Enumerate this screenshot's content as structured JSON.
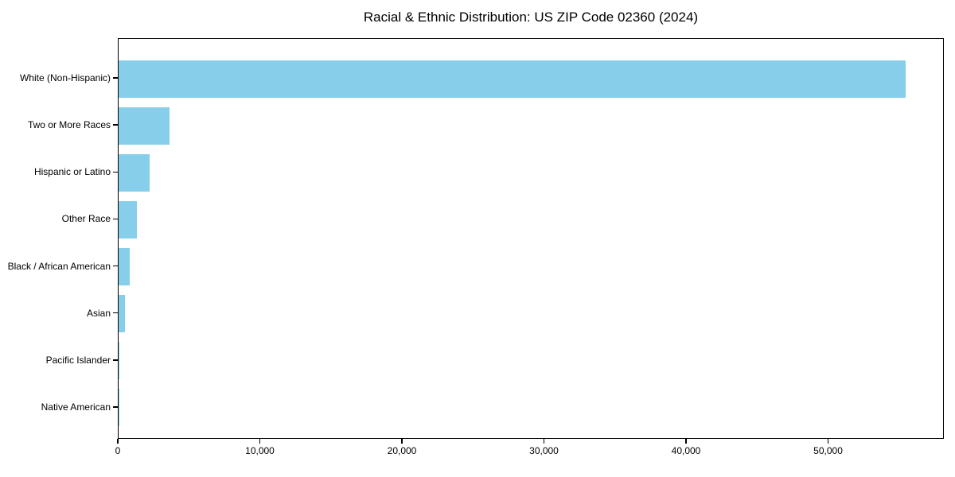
{
  "title": "Racial & Ethnic Distribution: US ZIP Code 02360 (2024)",
  "chart_data": {
    "type": "bar",
    "orientation": "horizontal",
    "title": "Racial & Ethnic Distribution: US ZIP Code 02360 (2024)",
    "categories": [
      "White (Non-Hispanic)",
      "Two or More Races",
      "Hispanic or Latino",
      "Other Race",
      "Black / African American",
      "Asian",
      "Pacific Islander",
      "Native American"
    ],
    "values": [
      55400,
      3600,
      2200,
      1300,
      800,
      450,
      60,
      25
    ],
    "xlabel": "",
    "ylabel": "",
    "xlim": [
      0,
      58150
    ],
    "xticks": {
      "values": [
        0,
        10000,
        20000,
        30000,
        40000,
        50000
      ],
      "labels": [
        "0",
        "10,000",
        "20,000",
        "30,000",
        "40,000",
        "50,000"
      ]
    },
    "grid": false,
    "legend": null,
    "bar_color": "#87CEEB",
    "axis_color": "#000000",
    "text_color": "#000000",
    "background_color": "#ffffff"
  }
}
